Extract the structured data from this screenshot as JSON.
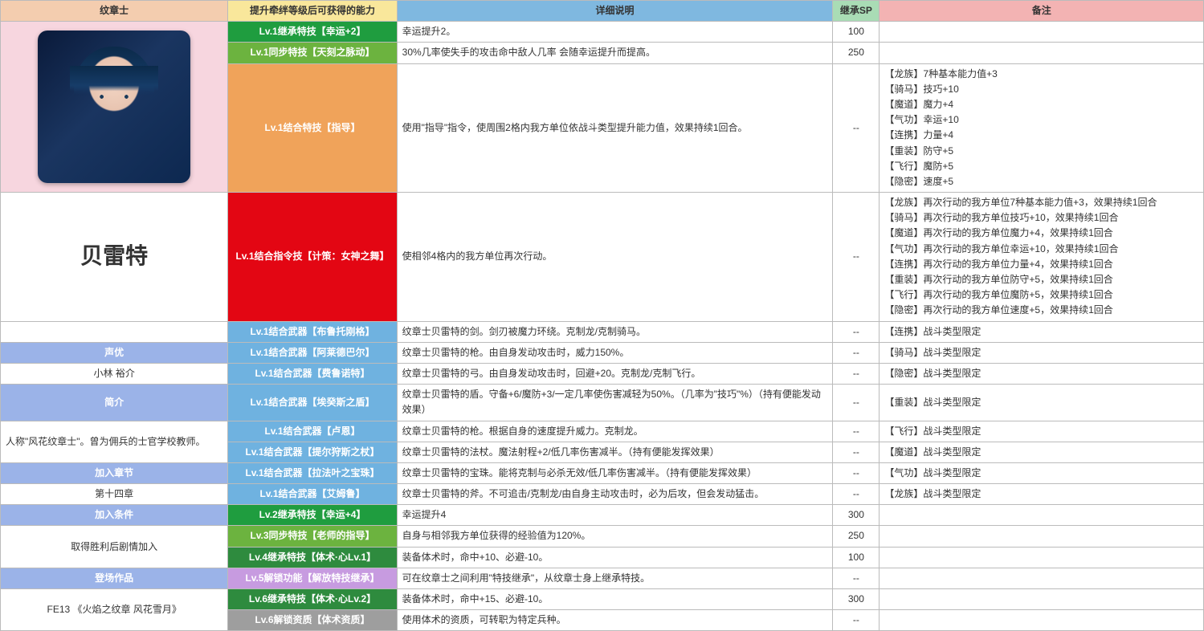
{
  "colW": {
    "col1": 283,
    "col2": 210,
    "col3": 542,
    "col4": 58,
    "col5": 403
  },
  "colors": {
    "hdr1": "#f4cdaf",
    "hdr2": "#f9e79b",
    "hdr3": "#7fb8e0",
    "hdr4": "#a9dcb5",
    "hdr5": "#f3b3b3",
    "left_section": "#9bb3e8",
    "pink_portrait": "#f7d6df",
    "tag_green1": "#1f9d3f",
    "tag_green2": "#6cb33f",
    "tag_orange": "#f0a35a",
    "tag_red": "#e30613",
    "tag_lblue": "#6fb2e0",
    "tag_green3": "#3cb371",
    "tag_green4": "#2e8b3e",
    "tag_purple": "#c79be0",
    "tag_gray": "#9e9e9e",
    "tag_text_white": "#ffffff"
  },
  "headers": {
    "c1": "纹章士",
    "c2": "提升牵绊等级后可获得的能力",
    "c3": "详细说明",
    "c4": "继承SP",
    "c5": "备注"
  },
  "character_name": "贝雷特",
  "left": {
    "voice_label": "声优",
    "voice": "小林 裕介",
    "intro_label": "简介",
    "intro": "人称\"风花纹章士\"。曾为佣兵的士官学校教师。",
    "join_ch_label": "加入章节",
    "join_ch": "第十四章",
    "join_cond_label": "加入条件",
    "join_cond": "取得胜利后剧情加入",
    "appear_label": "登场作品",
    "appear": "FE13 《火焰之纹章 风花雪月》"
  },
  "rows": [
    {
      "label": "Lv.1继承特技【幸运+2】",
      "label_bg": "#1f9d3f",
      "label_fg": "#ffffff",
      "desc": "幸运提升2。",
      "sp": "100",
      "note": ""
    },
    {
      "label": "Lv.1同步特技【天刻之脉动】",
      "label_bg": "#6cb33f",
      "label_fg": "#ffffff",
      "desc": "30%几率使失手的攻击命中敌人几率 会随幸运提升而提高。",
      "sp": "250",
      "note": ""
    },
    {
      "label": "Lv.1结合特技【指导】",
      "label_bg": "#f0a35a",
      "label_fg": "#ffffff",
      "desc": "使用\"指导\"指令，使周围2格内我方单位依战斗类型提升能力值，效果持续1回合。",
      "sp": "--",
      "note": "【龙族】7种基本能力值+3\n【骑马】技巧+10\n【魔道】魔力+4\n【气功】幸运+10\n【连携】力量+4\n【重装】防守+5\n【飞行】魔防+5\n【隐密】速度+5"
    },
    {
      "label": "Lv.1结合指令技【计策：女神之舞】",
      "label_bg": "#e30613",
      "label_fg": "#ffffff",
      "desc": "使相邻4格内的我方单位再次行动。",
      "sp": "--",
      "note": "【龙族】再次行动的我方单位7种基本能力值+3，效果持续1回合\n【骑马】再次行动的我方单位技巧+10，效果持续1回合\n【魔道】再次行动的我方单位魔力+4，效果持续1回合\n【气功】再次行动的我方单位幸运+10，效果持续1回合\n【连携】再次行动的我方单位力量+4，效果持续1回合\n【重装】再次行动的我方单位防守+5，效果持续1回合\n【飞行】再次行动的我方单位魔防+5，效果持续1回合\n【隐密】再次行动的我方单位速度+5，效果持续1回合"
    },
    {
      "label": "Lv.1结合武器【布鲁托刚格】",
      "label_bg": "#6fb2e0",
      "label_fg": "#ffffff",
      "desc": "纹章士贝雷特的剑。剑刃被魔力环绕。克制龙/克制骑马。",
      "sp": "--",
      "note": "【连携】战斗类型限定"
    },
    {
      "label": "Lv.1结合武器【阿莱德巴尔】",
      "label_bg": "#6fb2e0",
      "label_fg": "#ffffff",
      "desc": "纹章士贝雷特的枪。由自身发动攻击时，威力150%。",
      "sp": "--",
      "note": "【骑马】战斗类型限定"
    },
    {
      "label": "Lv.1结合武器【费鲁诺特】",
      "label_bg": "#6fb2e0",
      "label_fg": "#ffffff",
      "desc": "纹章士贝雷特的弓。由自身发动攻击时，回避+20。克制龙/克制飞行。",
      "sp": "--",
      "note": "【隐密】战斗类型限定"
    },
    {
      "label": "Lv.1结合武器【埃癸斯之盾】",
      "label_bg": "#6fb2e0",
      "label_fg": "#ffffff",
      "desc": "纹章士贝雷特的盾。守备+6/魔防+3/一定几率使伤害减轻为50%。（几率为\"技巧\"%）（持有便能发动效果）",
      "sp": "--",
      "note": "【重装】战斗类型限定"
    },
    {
      "label": "Lv.1结合武器【卢恩】",
      "label_bg": "#6fb2e0",
      "label_fg": "#ffffff",
      "desc": "纹章士贝雷特的枪。根据自身的速度提升威力。克制龙。",
      "sp": "--",
      "note": "【飞行】战斗类型限定"
    },
    {
      "label": "Lv.1结合武器【提尔狩斯之杖】",
      "label_bg": "#6fb2e0",
      "label_fg": "#ffffff",
      "desc": "纹章士贝雷特的法杖。魔法射程+2/低几率伤害减半。（持有便能发挥效果）",
      "sp": "--",
      "note": "【魔道】战斗类型限定"
    },
    {
      "label": "Lv.1结合武器【拉法叶之宝珠】",
      "label_bg": "#6fb2e0",
      "label_fg": "#ffffff",
      "desc": "纹章士贝雷特的宝珠。能将克制与必杀无效/低几率伤害减半。（持有便能发挥效果）",
      "sp": "--",
      "note": "【气功】战斗类型限定"
    },
    {
      "label": "Lv.1结合武器【艾姆鲁】",
      "label_bg": "#6fb2e0",
      "label_fg": "#ffffff",
      "desc": "纹章士贝雷特的斧。不可追击/克制龙/由自身主动攻击时，必为后攻，但会发动猛击。",
      "sp": "--",
      "note": "【龙族】战斗类型限定"
    },
    {
      "label": "Lv.2继承特技【幸运+4】",
      "label_bg": "#1f9d3f",
      "label_fg": "#ffffff",
      "desc": "幸运提升4",
      "sp": "300",
      "note": ""
    },
    {
      "label": "Lv.3同步特技【老师的指导】",
      "label_bg": "#6cb33f",
      "label_fg": "#ffffff",
      "desc": "自身与相邻我方单位获得的经验值为120%。",
      "sp": "250",
      "note": ""
    },
    {
      "label": "Lv.4继承特技【体术·心Lv.1】",
      "label_bg": "#2e8b3e",
      "label_fg": "#ffffff",
      "desc": "装备体术时，命中+10、必避-10。",
      "sp": "100",
      "note": ""
    },
    {
      "label": "Lv.5解锁功能【解放特技继承】",
      "label_bg": "#c79be0",
      "label_fg": "#ffffff",
      "desc": "可在纹章士之间利用\"特技继承\"，从纹章士身上继承特技。",
      "sp": "--",
      "note": ""
    },
    {
      "label": "Lv.6继承特技【体术·心Lv.2】",
      "label_bg": "#2e8b3e",
      "label_fg": "#ffffff",
      "desc": "装备体术时，命中+15、必避-10。",
      "sp": "300",
      "note": ""
    },
    {
      "label": "Lv.6解锁资质【体术资质】",
      "label_bg": "#9e9e9e",
      "label_fg": "#ffffff",
      "desc": "使用体术的资质，可转职为特定兵种。",
      "sp": "--",
      "note": ""
    }
  ]
}
